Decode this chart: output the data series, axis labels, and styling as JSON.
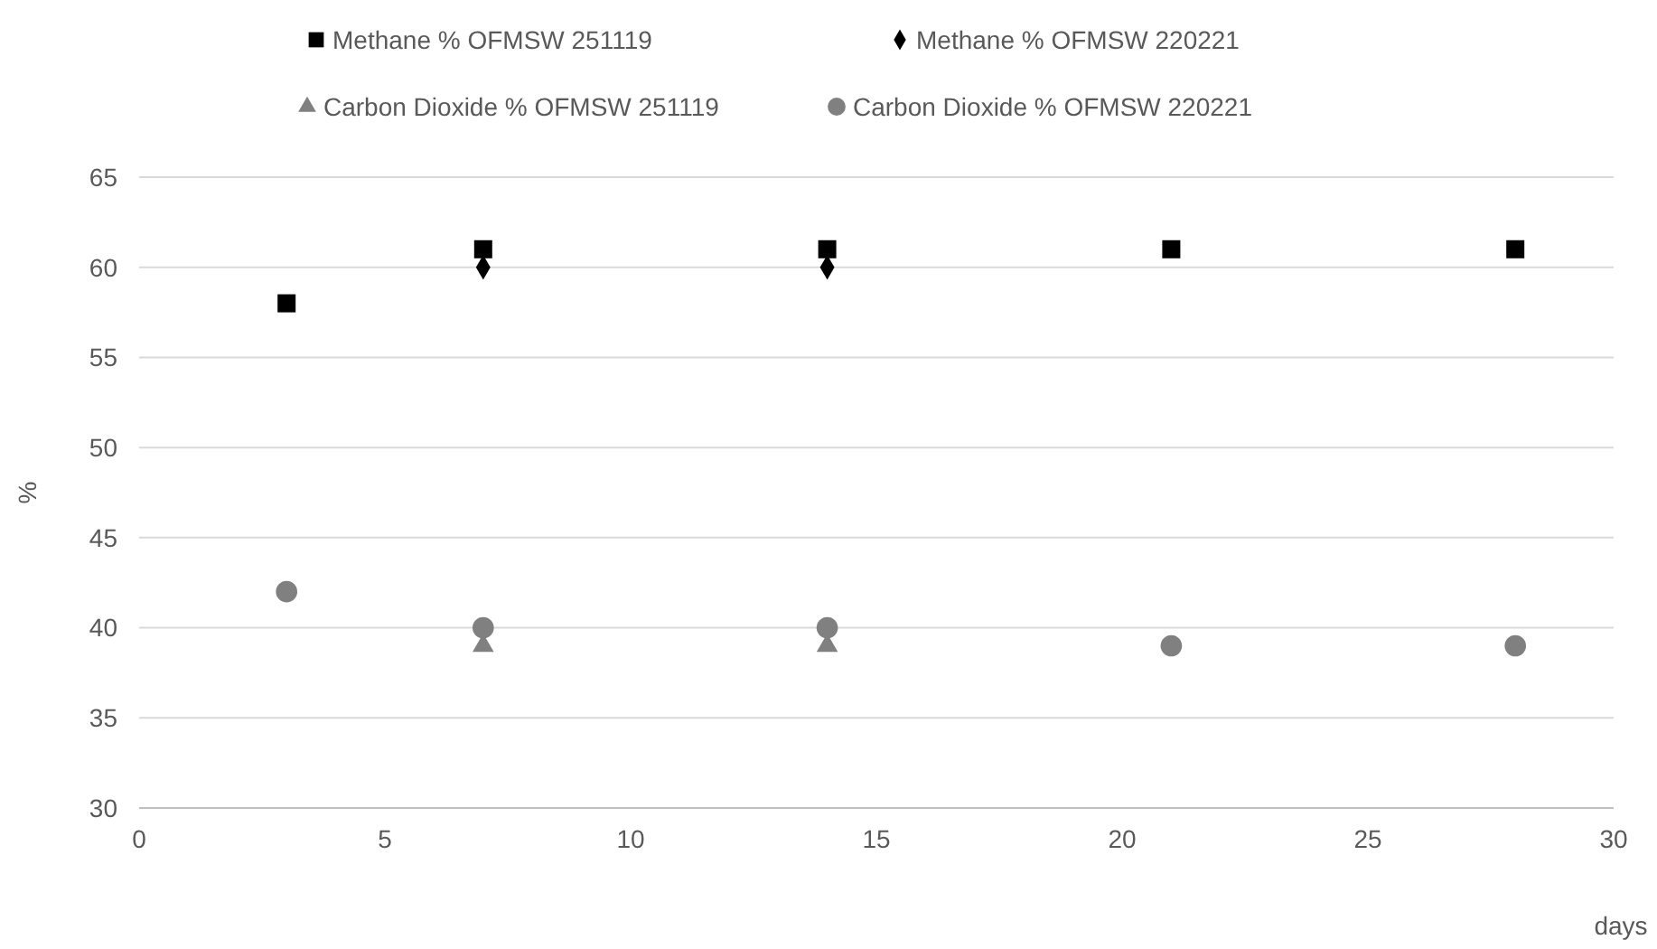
{
  "chart_data": {
    "type": "scatter",
    "xlabel": "days",
    "ylabel": "%",
    "xlim": [
      0,
      30
    ],
    "ylim": [
      30,
      65
    ],
    "xticks": [
      0,
      5,
      10,
      15,
      20,
      25,
      30
    ],
    "yticks": [
      30,
      35,
      40,
      45,
      50,
      55,
      60,
      65
    ],
    "grid": "y",
    "legend": "top",
    "x": [
      3,
      7,
      14,
      21,
      28
    ],
    "series": [
      {
        "name": "Methane % OFMSW 251119",
        "color": "#000000",
        "marker": "square",
        "values": [
          58,
          61,
          61,
          61,
          61
        ]
      },
      {
        "name": "Methane % OFMSW 220221",
        "color": "#000000",
        "marker": "diamond",
        "values": [
          null,
          60,
          60,
          null,
          null
        ]
      },
      {
        "name": "Carbon Dioxide % OFMSW 251119",
        "color": "#808080",
        "marker": "triangle",
        "values": [
          null,
          39,
          39,
          null,
          null
        ]
      },
      {
        "name": "Carbon Dioxide % OFMSW 220221",
        "color": "#808080",
        "marker": "circle",
        "values": [
          42,
          40,
          40,
          39,
          39
        ]
      }
    ]
  }
}
